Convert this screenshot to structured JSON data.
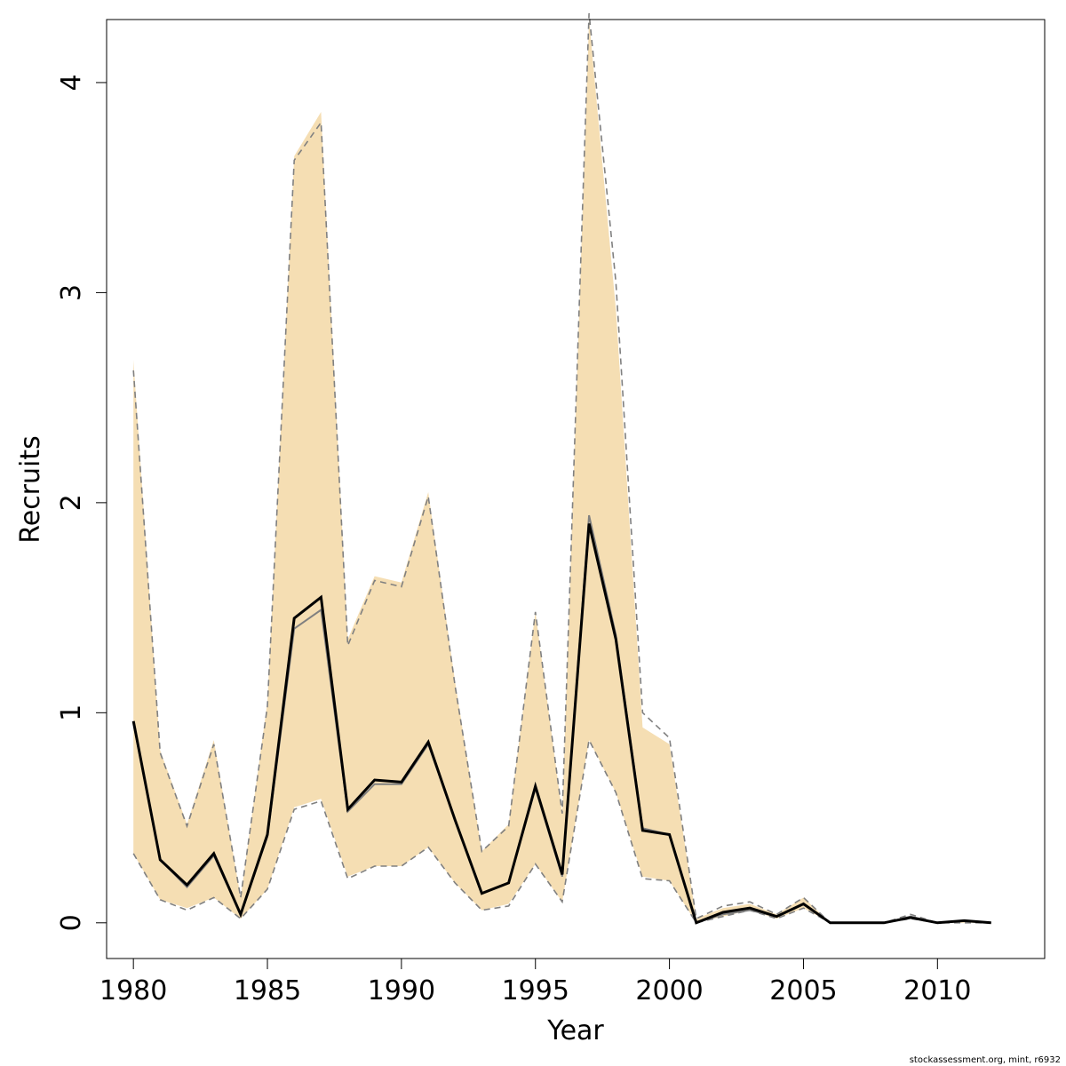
{
  "chart_data": {
    "type": "line",
    "xlabel": "Year",
    "ylabel": "Recruits",
    "xlim": [
      1979,
      2014
    ],
    "ylim": [
      -0.17,
      4.3
    ],
    "x_ticks": [
      1980,
      1985,
      1990,
      1995,
      2000,
      2005,
      2010
    ],
    "y_ticks": [
      0,
      1,
      2,
      3,
      4
    ],
    "grid": false,
    "legend": "none",
    "years": [
      1980,
      1981,
      1982,
      1983,
      1984,
      1985,
      1986,
      1987,
      1988,
      1989,
      1990,
      1991,
      1992,
      1993,
      1994,
      1995,
      1996,
      1997,
      1998,
      1999,
      2000,
      2001,
      2002,
      2003,
      2004,
      2005,
      2006,
      2007,
      2008,
      2009,
      2010,
      2011,
      2012
    ],
    "band": {
      "color": "#f5deb3",
      "upper": [
        2.68,
        0.82,
        0.47,
        0.87,
        0.12,
        1.05,
        3.65,
        3.86,
        1.35,
        1.65,
        1.62,
        2.05,
        1.15,
        0.34,
        0.47,
        1.48,
        0.52,
        4.3,
        2.92,
        0.93,
        0.85,
        0.02,
        0.07,
        0.09,
        0.04,
        0.12,
        0.0,
        0.0,
        0.0,
        0.03,
        0.0,
        0.01,
        0.0
      ],
      "lower": [
        0.33,
        0.11,
        0.07,
        0.12,
        0.02,
        0.16,
        0.55,
        0.59,
        0.22,
        0.27,
        0.27,
        0.36,
        0.19,
        0.06,
        0.09,
        0.28,
        0.1,
        0.87,
        0.62,
        0.22,
        0.2,
        0.0,
        0.03,
        0.06,
        0.02,
        0.07,
        0.0,
        0.0,
        0.0,
        0.02,
        0.0,
        0.0,
        0.0
      ]
    },
    "series": [
      {
        "color": "#000000",
        "values": [
          0.96,
          0.3,
          0.18,
          0.33,
          0.04,
          0.42,
          1.45,
          1.55,
          0.54,
          0.68,
          0.67,
          0.86,
          0.49,
          0.14,
          0.19,
          0.65,
          0.23,
          1.9,
          1.35,
          0.44,
          0.42,
          0.0,
          0.05,
          0.07,
          0.03,
          0.09,
          0.0,
          0.0,
          0.0,
          0.025,
          0.0,
          0.01,
          0.0
        ]
      },
      {
        "color": "#808080",
        "values": [
          0.95,
          0.3,
          0.17,
          0.32,
          0.04,
          0.41,
          1.4,
          1.49,
          0.53,
          0.66,
          0.66,
          0.85,
          0.49,
          0.14,
          0.19,
          0.64,
          0.22,
          1.94,
          1.37,
          0.45,
          0.42,
          0.0,
          0.04,
          0.06,
          0.03,
          0.09,
          0.0,
          0.0,
          0.0,
          0.03,
          0.0,
          0.01,
          0.0
        ]
      }
    ],
    "ci_dashed": {
      "color": "#808080",
      "upper": [
        2.63,
        0.81,
        0.46,
        0.85,
        0.12,
        1.03,
        3.63,
        3.81,
        1.32,
        1.63,
        1.6,
        2.03,
        1.13,
        0.34,
        0.46,
        1.48,
        0.52,
        4.33,
        3.05,
        1.0,
        0.88,
        0.02,
        0.08,
        0.1,
        0.04,
        0.12,
        0.0,
        0.0,
        0.0,
        0.04,
        0.0,
        0.01,
        0.0
      ],
      "lower": [
        0.33,
        0.11,
        0.06,
        0.12,
        0.02,
        0.16,
        0.54,
        0.58,
        0.21,
        0.27,
        0.27,
        0.36,
        0.19,
        0.06,
        0.08,
        0.28,
        0.1,
        0.87,
        0.62,
        0.21,
        0.2,
        0.0,
        0.03,
        0.06,
        0.02,
        0.07,
        0.0,
        0.0,
        0.0,
        0.02,
        0.0,
        0.0,
        0.0
      ]
    }
  },
  "footer": "stockassessment.org, mint, r6932"
}
